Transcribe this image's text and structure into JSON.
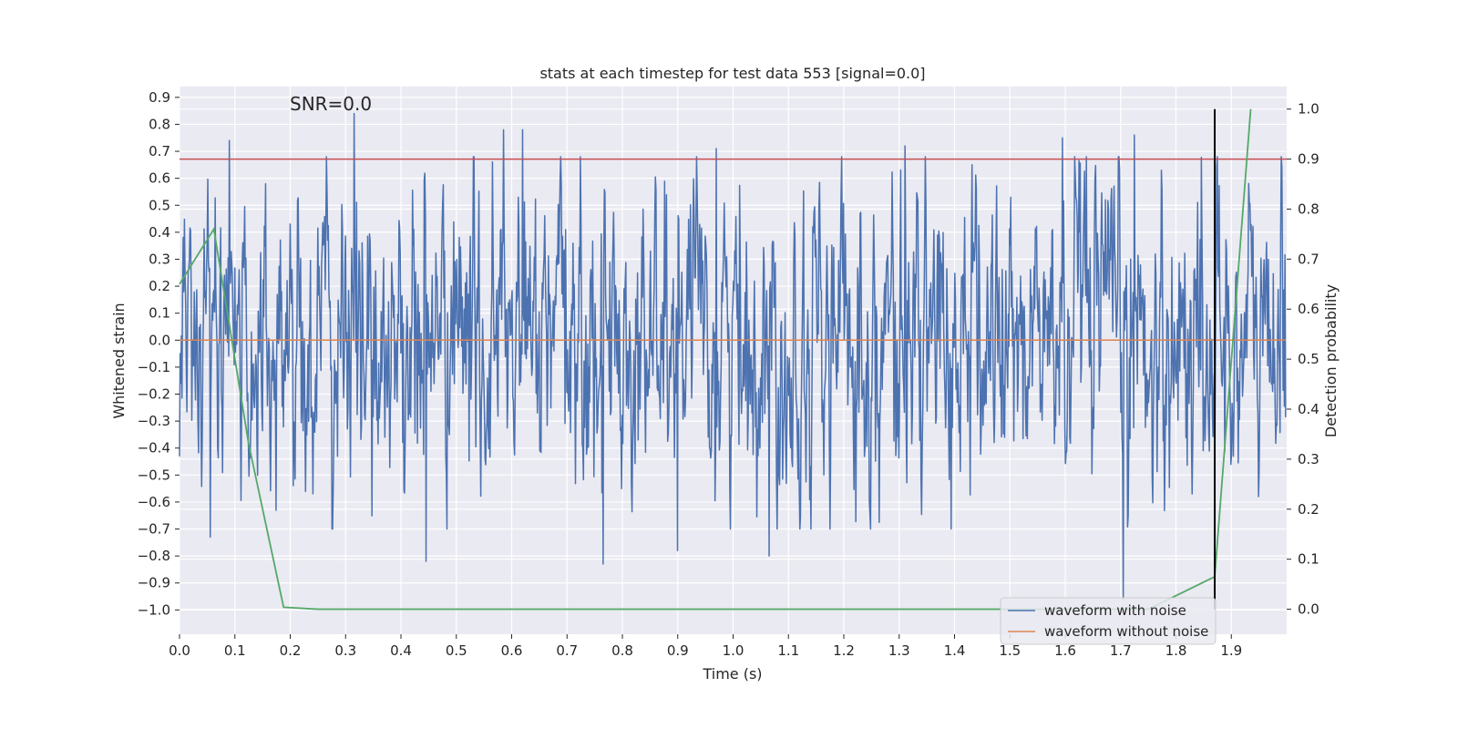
{
  "chart_data": {
    "type": "line",
    "title": "stats at each timestep for test data 553 [signal=0.0]",
    "xlabel": "Time (s)",
    "ylabel": "Whitened strain",
    "y2label": "Detection probability",
    "xlim": [
      0.0,
      2.0
    ],
    "ylim": [
      -1.09,
      0.94
    ],
    "y2lim": [
      -0.05,
      1.045
    ],
    "x_ticks": [
      "0.0",
      "0.1",
      "0.2",
      "0.3",
      "0.4",
      "0.5",
      "0.6",
      "0.7",
      "0.8",
      "0.9",
      "1.0",
      "1.1",
      "1.2",
      "1.3",
      "1.4",
      "1.5",
      "1.6",
      "1.7",
      "1.8",
      "1.9"
    ],
    "y_ticks": [
      "0.9",
      "0.8",
      "0.7",
      "0.6",
      "0.5",
      "0.4",
      "0.3",
      "0.2",
      "0.1",
      "0.0",
      "−0.1",
      "−0.2",
      "−0.3",
      "−0.4",
      "−0.5",
      "−0.6",
      "−0.7",
      "−0.8",
      "−0.9",
      "−1.0"
    ],
    "y2_ticks": [
      "1.0",
      "0.9",
      "0.8",
      "0.7",
      "0.6",
      "0.5",
      "0.4",
      "0.3",
      "0.2",
      "0.1",
      "0.0"
    ],
    "annotation": "SNR=0.0",
    "series": [
      {
        "name": "waveform with noise",
        "color": "#4c72b0",
        "axis": "left",
        "x_range": [
          0.0,
          1.998
        ],
        "n_points": 1800,
        "amplitude_std": 0.28,
        "peaks": [
          {
            "x": 0.09,
            "y": 0.74
          },
          {
            "x": 0.315,
            "y": 0.84
          },
          {
            "x": 0.585,
            "y": 0.78
          },
          {
            "x": 0.62,
            "y": 0.78
          },
          {
            "x": 0.97,
            "y": 0.71
          },
          {
            "x": 1.31,
            "y": 0.72
          },
          {
            "x": 1.595,
            "y": 0.75
          },
          {
            "x": 1.725,
            "y": 0.76
          },
          {
            "x": 0.055,
            "y": -0.73
          },
          {
            "x": 0.445,
            "y": -0.82
          },
          {
            "x": 0.765,
            "y": -0.83
          },
          {
            "x": 1.065,
            "y": -0.8
          },
          {
            "x": 1.705,
            "y": -0.96
          },
          {
            "x": 0.9,
            "y": -0.78
          }
        ]
      },
      {
        "name": "waveform without noise",
        "color": "#dd8452",
        "axis": "left",
        "x": [
          0.0,
          1.998
        ],
        "y": [
          0.0,
          0.0
        ]
      },
      {
        "name": "detection probability",
        "color": "#55a868",
        "axis": "right",
        "x": [
          0.0,
          0.062,
          0.125,
          0.188,
          0.25,
          0.5,
          1.0,
          1.5,
          1.75,
          1.87,
          1.935
        ],
        "y": [
          0.65,
          0.76,
          0.33,
          0.004,
          0.0,
          0.0,
          0.0,
          0.0,
          0.0,
          0.065,
          1.0
        ]
      }
    ],
    "threshold": {
      "value": 0.9,
      "axis": "right",
      "color": "#c44e52"
    },
    "vline": {
      "x": 1.87,
      "color": "#000000",
      "y2_range": [
        0.0,
        1.0
      ]
    },
    "legend": {
      "placement": "lower-right",
      "entries": [
        {
          "label": "waveform with noise",
          "color": "#4c72b0"
        },
        {
          "label": "waveform without noise",
          "color": "#dd8452"
        }
      ]
    },
    "colors": {
      "background": "#eaeaf2",
      "grid": "#ffffff"
    }
  }
}
